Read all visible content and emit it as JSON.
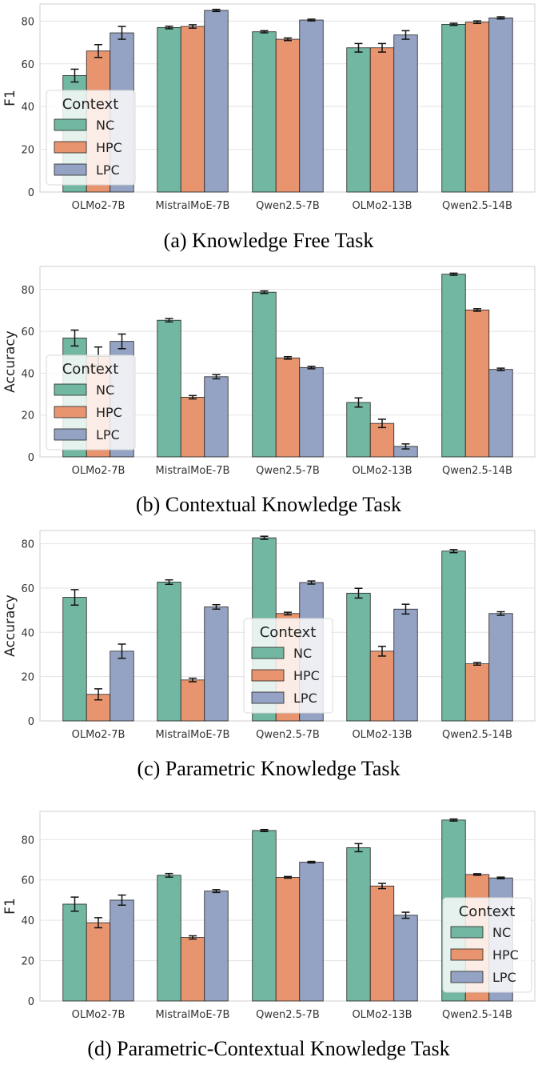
{
  "colors": {
    "NC": "#72b7a1",
    "HPC": "#e8956f",
    "LPC": "#94a3c3",
    "grid": "#e3e3e3",
    "axis": "#cfcfcf"
  },
  "chart_data": [
    {
      "type": "bar",
      "caption": "(a) Knowledge Free Task",
      "ylabel": "F1",
      "ylim": [
        0,
        88
      ],
      "yticks": [
        0,
        20,
        40,
        60,
        80
      ],
      "legend_title": "Context",
      "legend_position": "center-left",
      "categories": [
        "OLMo2-7B",
        "MistralMoE-7B",
        "Qwen2.5-7B",
        "OLMo2-13B",
        "Qwen2.5-14B"
      ],
      "series": [
        {
          "name": "NC",
          "values": [
            54.5,
            77.0,
            75.0,
            67.5,
            78.5
          ],
          "errors": [
            3.0,
            0.6,
            0.5,
            2.0,
            0.5
          ]
        },
        {
          "name": "HPC",
          "values": [
            66.0,
            77.5,
            71.5,
            67.5,
            79.5
          ],
          "errors": [
            3.0,
            0.8,
            0.6,
            2.0,
            0.6
          ]
        },
        {
          "name": "LPC",
          "values": [
            74.5,
            85.0,
            80.5,
            73.5,
            81.5
          ],
          "errors": [
            3.0,
            0.5,
            0.4,
            2.0,
            0.5
          ]
        }
      ]
    },
    {
      "type": "bar",
      "caption": "(b) Contextual Knowledge Task",
      "ylabel": "Accuracy",
      "ylim": [
        0,
        91
      ],
      "yticks": [
        0,
        20,
        40,
        60,
        80
      ],
      "legend_title": "Context",
      "legend_position": "center-left",
      "categories": [
        "OLMo2-7B",
        "MistralMoE-7B",
        "Qwen2.5-7B",
        "OLMo2-13B",
        "Qwen2.5-14B"
      ],
      "series": [
        {
          "name": "NC",
          "values": [
            56.8,
            65.3,
            78.7,
            26.0,
            87.3
          ],
          "errors": [
            3.8,
            0.8,
            0.6,
            2.2,
            0.5
          ]
        },
        {
          "name": "HPC",
          "values": [
            48.0,
            28.5,
            47.3,
            16.0,
            70.2
          ],
          "errors": [
            4.5,
            0.8,
            0.6,
            2.0,
            0.6
          ]
        },
        {
          "name": "LPC",
          "values": [
            55.2,
            38.3,
            42.7,
            5.0,
            41.8
          ],
          "errors": [
            3.5,
            1.0,
            0.6,
            1.2,
            0.6
          ]
        }
      ]
    },
    {
      "type": "bar",
      "caption": "(c) Parametric Knowledge Task",
      "ylabel": "Accuracy",
      "ylim": [
        0,
        86
      ],
      "yticks": [
        0,
        20,
        40,
        60,
        80
      ],
      "legend_title": "Context",
      "legend_position": "bottom-center",
      "categories": [
        "OLMo2-7B",
        "MistralMoE-7B",
        "Qwen2.5-7B",
        "OLMo2-13B",
        "Qwen2.5-14B"
      ],
      "series": [
        {
          "name": "NC",
          "values": [
            55.8,
            62.7,
            82.7,
            57.7,
            76.7
          ],
          "errors": [
            3.5,
            1.0,
            0.7,
            2.2,
            0.7
          ]
        },
        {
          "name": "HPC",
          "values": [
            12.0,
            18.5,
            48.5,
            31.5,
            25.8
          ],
          "errors": [
            2.5,
            0.8,
            0.6,
            2.2,
            0.6
          ]
        },
        {
          "name": "LPC",
          "values": [
            31.5,
            51.5,
            62.5,
            50.5,
            48.5
          ],
          "errors": [
            3.2,
            1.0,
            0.7,
            2.2,
            0.8
          ]
        }
      ]
    },
    {
      "type": "bar",
      "caption": "(d) Parametric-Contextual Knowledge Task",
      "ylabel": "F1",
      "ylim": [
        0,
        94
      ],
      "yticks": [
        0,
        20,
        40,
        60,
        80
      ],
      "legend_title": "Context",
      "legend_position": "bottom-right",
      "categories": [
        "OLMo2-7B",
        "MistralMoE-7B",
        "Qwen2.5-7B",
        "OLMo2-13B",
        "Qwen2.5-14B"
      ],
      "series": [
        {
          "name": "NC",
          "values": [
            48.0,
            62.3,
            84.5,
            76.0,
            89.7
          ],
          "errors": [
            3.5,
            0.9,
            0.5,
            2.0,
            0.5
          ]
        },
        {
          "name": "HPC",
          "values": [
            38.8,
            31.5,
            61.3,
            57.0,
            62.7
          ],
          "errors": [
            2.5,
            0.8,
            0.4,
            1.3,
            0.4
          ]
        },
        {
          "name": "LPC",
          "values": [
            50.0,
            54.5,
            68.8,
            42.5,
            61.0
          ],
          "errors": [
            2.5,
            0.7,
            0.4,
            1.5,
            0.4
          ]
        }
      ]
    }
  ]
}
